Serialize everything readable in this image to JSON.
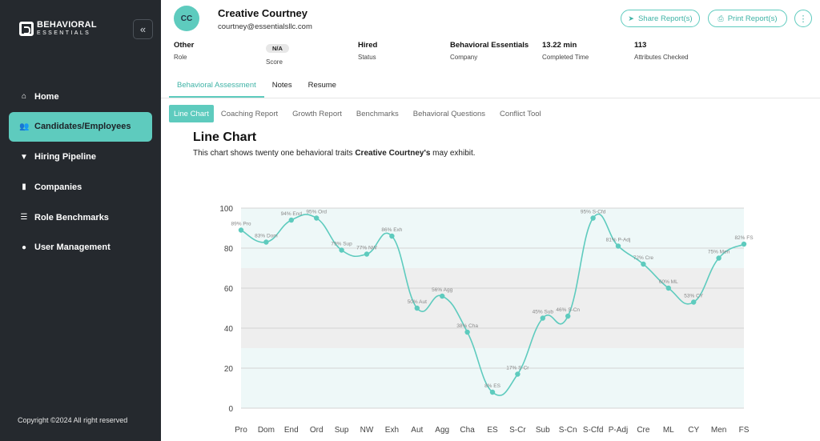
{
  "sidebar": {
    "logo_line1": "BEHAVIORAL",
    "logo_line2": "ESSENTIALS",
    "collapse_icon": "«",
    "items": [
      {
        "label": "Home",
        "icon": "home-icon",
        "glyph": "⌂",
        "active": false
      },
      {
        "label": "Candidates/Employees",
        "icon": "users-icon",
        "glyph": "👥",
        "active": true
      },
      {
        "label": "Hiring Pipeline",
        "icon": "funnel-icon",
        "glyph": "▼",
        "active": false
      },
      {
        "label": "Companies",
        "icon": "building-icon",
        "glyph": "▮",
        "active": false
      },
      {
        "label": "Role Benchmarks",
        "icon": "sliders-icon",
        "glyph": "☰",
        "active": false
      },
      {
        "label": "User Management",
        "icon": "user-icon",
        "glyph": "●",
        "active": false
      }
    ],
    "copyright": "Copyright ©2024 All right reserved"
  },
  "header": {
    "initials": "CC",
    "name": "Creative Courtney",
    "email": "courtney@essentialsllc.com",
    "share_label": "Share Report(s)",
    "print_label": "Print Report(s)",
    "share_icon": "➤",
    "print_icon": "⎙",
    "more_icon": "⋮",
    "info": [
      {
        "value": "Other",
        "label": "Role"
      },
      {
        "value": "N/A",
        "label": "Score"
      },
      {
        "value": "Hired",
        "label": "Status"
      },
      {
        "value": "Behavioral Essentials",
        "label": "Company"
      },
      {
        "value": "13.22 min",
        "label": "Completed Time"
      },
      {
        "value": "113",
        "label": "Attributes Checked"
      }
    ]
  },
  "tabs": {
    "main": [
      "Behavioral Assessment",
      "Notes",
      "Resume"
    ],
    "sub": [
      "Line Chart",
      "Coaching Report",
      "Growth Report",
      "Benchmarks",
      "Behavioral Questions",
      "Conflict Tool"
    ]
  },
  "content": {
    "title": "Line Chart",
    "desc_pre": "This chart shows twenty one behavioral traits ",
    "desc_name": "Creative Courtney's",
    "desc_post": " may exhibit."
  },
  "colors": {
    "accent": "#5ecbbe",
    "band_high": "#eef8f8",
    "band_mid": "#eeeeee",
    "band_low": "#eef8f8"
  },
  "chart_data": {
    "type": "line",
    "categories": [
      "Pro",
      "Dom",
      "End",
      "Ord",
      "Sup",
      "NW",
      "Exh",
      "Aut",
      "Agg",
      "Cha",
      "ES",
      "S-Cr",
      "Sub",
      "S-Cn",
      "S-Cfd",
      "P-Adj",
      "Cre",
      "ML",
      "CY",
      "Men",
      "FS"
    ],
    "values": [
      89,
      83,
      94,
      95,
      79,
      77,
      86,
      50,
      56,
      38,
      8,
      17,
      45,
      46,
      95,
      81,
      72,
      60,
      53,
      75,
      82
    ],
    "point_labels": [
      "89% Pro",
      "83% Dom",
      "94% End",
      "95% Ord",
      "79% Sup",
      "77% NW",
      "86% Exh",
      "50% Aut",
      "56% Agg",
      "38% Cha",
      "8% ES",
      "17% S-Cr",
      "45% Sub",
      "46% S-Cn",
      "95% S-Cfd",
      "81% P-Adj",
      "72% Cre",
      "60% ML",
      "53% CY",
      "75% Men",
      "82% FS"
    ],
    "yticks": [
      0,
      20,
      40,
      60,
      80,
      100
    ],
    "ylim": [
      0,
      100
    ],
    "bands": [
      {
        "from": 70,
        "to": 100,
        "color": "#eef8f8"
      },
      {
        "from": 30,
        "to": 70,
        "color": "#eeeeee"
      },
      {
        "from": 0,
        "to": 30,
        "color": "#eef8f8"
      }
    ],
    "grid": true
  }
}
